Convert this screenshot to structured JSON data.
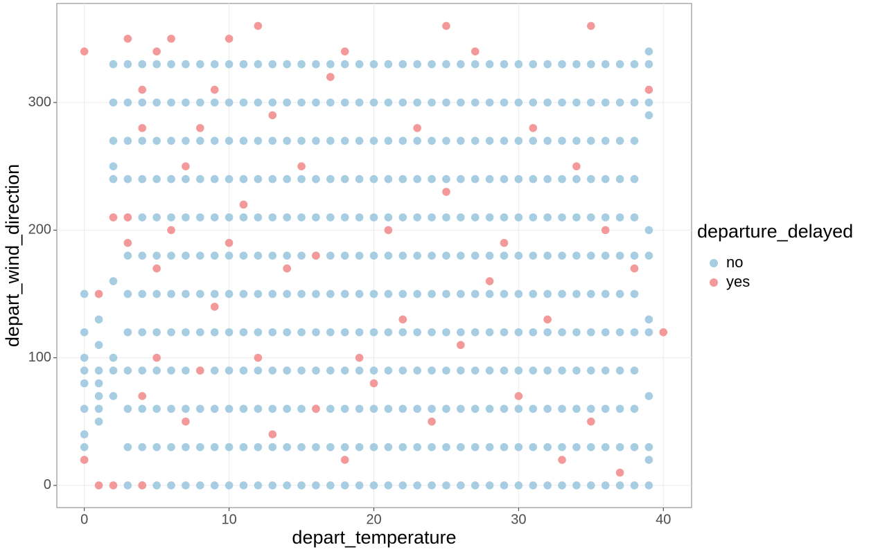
{
  "chart_data": {
    "type": "scatter",
    "x_label": "depart_temperature",
    "y_label": "depart_wind_direction",
    "legend_title": "departure_delayed",
    "xlim": [
      -1.9,
      41.95
    ],
    "ylim": [
      -17.4,
      377.6
    ],
    "xticks": [
      0,
      10,
      20,
      30,
      40
    ],
    "yticks": [
      0,
      100,
      200,
      300
    ],
    "grid": true,
    "legend": "right",
    "series": [
      {
        "name": "no",
        "color": "#a6cde1",
        "x": [
          0,
          0,
          0,
          0,
          0,
          0,
          0,
          0,
          1,
          1,
          1,
          1,
          1,
          1,
          1,
          2,
          2,
          2,
          2,
          2,
          2,
          2,
          2,
          2,
          3,
          3,
          3,
          3,
          3,
          3,
          3,
          3,
          3,
          3,
          3,
          3,
          4,
          4,
          4,
          4,
          4,
          4,
          4,
          4,
          4,
          4,
          4,
          4,
          5,
          5,
          5,
          5,
          5,
          5,
          5,
          5,
          5,
          5,
          5,
          5,
          6,
          6,
          6,
          6,
          6,
          6,
          6,
          6,
          6,
          6,
          6,
          6,
          7,
          7,
          7,
          7,
          7,
          7,
          7,
          7,
          7,
          7,
          7,
          7,
          8,
          8,
          8,
          8,
          8,
          8,
          8,
          8,
          8,
          8,
          8,
          8,
          9,
          9,
          9,
          9,
          9,
          9,
          9,
          9,
          9,
          9,
          9,
          9,
          10,
          10,
          10,
          10,
          10,
          10,
          10,
          10,
          10,
          10,
          10,
          10,
          11,
          11,
          11,
          11,
          11,
          11,
          11,
          11,
          11,
          11,
          11,
          11,
          12,
          12,
          12,
          12,
          12,
          12,
          12,
          12,
          12,
          12,
          12,
          12,
          13,
          13,
          13,
          13,
          13,
          13,
          13,
          13,
          13,
          13,
          13,
          13,
          14,
          14,
          14,
          14,
          14,
          14,
          14,
          14,
          14,
          14,
          14,
          14,
          15,
          15,
          15,
          15,
          15,
          15,
          15,
          15,
          15,
          15,
          15,
          15,
          16,
          16,
          16,
          16,
          16,
          16,
          16,
          16,
          16,
          16,
          16,
          16,
          17,
          17,
          17,
          17,
          17,
          17,
          17,
          17,
          17,
          17,
          17,
          17,
          18,
          18,
          18,
          18,
          18,
          18,
          18,
          18,
          18,
          18,
          18,
          18,
          19,
          19,
          19,
          19,
          19,
          19,
          19,
          19,
          19,
          19,
          19,
          19,
          20,
          20,
          20,
          20,
          20,
          20,
          20,
          20,
          20,
          20,
          20,
          20,
          21,
          21,
          21,
          21,
          21,
          21,
          21,
          21,
          21,
          21,
          21,
          21,
          22,
          22,
          22,
          22,
          22,
          22,
          22,
          22,
          22,
          22,
          22,
          22,
          23,
          23,
          23,
          23,
          23,
          23,
          23,
          23,
          23,
          23,
          23,
          23,
          24,
          24,
          24,
          24,
          24,
          24,
          24,
          24,
          24,
          24,
          24,
          24,
          25,
          25,
          25,
          25,
          25,
          25,
          25,
          25,
          25,
          25,
          25,
          25,
          26,
          26,
          26,
          26,
          26,
          26,
          26,
          26,
          26,
          26,
          26,
          26,
          27,
          27,
          27,
          27,
          27,
          27,
          27,
          27,
          27,
          27,
          27,
          27,
          28,
          28,
          28,
          28,
          28,
          28,
          28,
          28,
          28,
          28,
          28,
          28,
          29,
          29,
          29,
          29,
          29,
          29,
          29,
          29,
          29,
          29,
          29,
          29,
          30,
          30,
          30,
          30,
          30,
          30,
          30,
          30,
          30,
          30,
          30,
          30,
          31,
          31,
          31,
          31,
          31,
          31,
          31,
          31,
          31,
          31,
          31,
          31,
          32,
          32,
          32,
          32,
          32,
          32,
          32,
          32,
          32,
          32,
          32,
          32,
          33,
          33,
          33,
          33,
          33,
          33,
          33,
          33,
          33,
          33,
          33,
          33,
          34,
          34,
          34,
          34,
          34,
          34,
          34,
          34,
          34,
          34,
          34,
          34,
          35,
          35,
          35,
          35,
          35,
          35,
          35,
          35,
          35,
          35,
          35,
          35,
          36,
          36,
          36,
          36,
          36,
          36,
          36,
          36,
          36,
          36,
          36,
          36,
          37,
          37,
          37,
          37,
          37,
          37,
          37,
          37,
          37,
          37,
          37,
          37,
          38,
          38,
          38,
          38,
          38,
          38,
          38,
          38,
          38,
          38,
          38,
          38,
          39,
          39,
          39,
          39,
          39,
          39,
          39,
          39,
          39,
          39,
          39,
          39
        ],
        "values": [
          30,
          40,
          60,
          80,
          90,
          100,
          120,
          150,
          50,
          60,
          70,
          80,
          90,
          110,
          130,
          70,
          90,
          100,
          160,
          240,
          250,
          270,
          300,
          330,
          0,
          30,
          60,
          90,
          120,
          150,
          180,
          210,
          240,
          270,
          300,
          330,
          0,
          30,
          60,
          90,
          120,
          150,
          180,
          210,
          240,
          270,
          300,
          330,
          0,
          30,
          60,
          90,
          120,
          150,
          180,
          210,
          240,
          270,
          300,
          330,
          0,
          30,
          60,
          90,
          120,
          150,
          180,
          210,
          240,
          270,
          300,
          330,
          0,
          30,
          60,
          90,
          120,
          150,
          180,
          210,
          240,
          270,
          300,
          330,
          0,
          30,
          60,
          90,
          120,
          150,
          180,
          210,
          240,
          270,
          300,
          330,
          0,
          30,
          60,
          90,
          120,
          150,
          180,
          210,
          240,
          270,
          300,
          330,
          0,
          30,
          60,
          90,
          120,
          150,
          180,
          210,
          240,
          270,
          300,
          330,
          0,
          30,
          60,
          90,
          120,
          150,
          180,
          210,
          240,
          270,
          300,
          330,
          0,
          30,
          60,
          90,
          120,
          150,
          180,
          210,
          240,
          270,
          300,
          330,
          0,
          30,
          60,
          90,
          120,
          150,
          180,
          210,
          240,
          270,
          300,
          330,
          0,
          30,
          60,
          90,
          120,
          150,
          180,
          210,
          240,
          270,
          300,
          330,
          0,
          30,
          60,
          90,
          120,
          150,
          180,
          210,
          240,
          270,
          300,
          330,
          0,
          30,
          60,
          90,
          120,
          150,
          180,
          210,
          240,
          270,
          300,
          330,
          0,
          30,
          60,
          90,
          120,
          150,
          180,
          210,
          240,
          270,
          300,
          330,
          0,
          30,
          60,
          90,
          120,
          150,
          180,
          210,
          240,
          270,
          300,
          330,
          0,
          30,
          60,
          90,
          120,
          150,
          180,
          210,
          240,
          270,
          300,
          330,
          0,
          30,
          60,
          90,
          120,
          150,
          180,
          210,
          240,
          270,
          300,
          330,
          0,
          30,
          60,
          90,
          120,
          150,
          180,
          210,
          240,
          270,
          300,
          330,
          0,
          30,
          60,
          90,
          120,
          150,
          180,
          210,
          240,
          270,
          300,
          330,
          0,
          30,
          60,
          90,
          120,
          150,
          180,
          210,
          240,
          270,
          300,
          330,
          0,
          30,
          60,
          90,
          120,
          150,
          180,
          210,
          240,
          270,
          300,
          330,
          0,
          30,
          60,
          90,
          120,
          150,
          180,
          210,
          240,
          270,
          300,
          330,
          0,
          30,
          60,
          90,
          120,
          150,
          180,
          210,
          240,
          270,
          300,
          330,
          0,
          30,
          60,
          90,
          120,
          150,
          180,
          210,
          240,
          270,
          300,
          330,
          0,
          30,
          60,
          90,
          120,
          150,
          180,
          210,
          240,
          270,
          300,
          330,
          0,
          30,
          60,
          90,
          120,
          150,
          180,
          210,
          240,
          270,
          300,
          330,
          0,
          30,
          60,
          90,
          120,
          150,
          180,
          210,
          240,
          270,
          300,
          330,
          0,
          30,
          60,
          90,
          120,
          150,
          180,
          210,
          240,
          270,
          300,
          330,
          0,
          30,
          60,
          90,
          120,
          150,
          180,
          210,
          240,
          270,
          300,
          330,
          0,
          30,
          60,
          90,
          120,
          150,
          180,
          210,
          240,
          270,
          300,
          330,
          0,
          30,
          60,
          90,
          120,
          150,
          180,
          210,
          240,
          270,
          300,
          330,
          0,
          30,
          60,
          90,
          120,
          150,
          180,
          210,
          240,
          270,
          300,
          330,
          0,
          30,
          60,
          90,
          120,
          150,
          180,
          210,
          240,
          270,
          300,
          330,
          0,
          30,
          60,
          90,
          120,
          150,
          180,
          210,
          240,
          270,
          300,
          330,
          0,
          30,
          60,
          90,
          120,
          150,
          180,
          210,
          240,
          270,
          300,
          330,
          0,
          20,
          30,
          70,
          120,
          130,
          180,
          200,
          290,
          300,
          330,
          340
        ]
      },
      {
        "name": "yes",
        "color": "#f4999a",
        "x": [
          0,
          0,
          1,
          1,
          2,
          2,
          3,
          3,
          3,
          4,
          4,
          4,
          4,
          5,
          5,
          5,
          6,
          6,
          7,
          7,
          8,
          8,
          9,
          9,
          10,
          10,
          11,
          12,
          12,
          13,
          13,
          14,
          15,
          16,
          16,
          17,
          18,
          18,
          19,
          20,
          21,
          22,
          23,
          24,
          25,
          25,
          26,
          27,
          28,
          29,
          30,
          31,
          32,
          33,
          34,
          35,
          35,
          36,
          37,
          38,
          39,
          40
        ],
        "values": [
          20,
          340,
          0,
          150,
          0,
          210,
          210,
          350,
          190,
          280,
          310,
          70,
          0,
          340,
          170,
          100,
          350,
          200,
          50,
          250,
          280,
          90,
          310,
          140,
          350,
          190,
          220,
          360,
          100,
          290,
          40,
          170,
          250,
          180,
          60,
          320,
          340,
          20,
          100,
          80,
          200,
          130,
          280,
          50,
          360,
          230,
          110,
          340,
          160,
          190,
          70,
          280,
          130,
          20,
          250,
          360,
          50,
          200,
          10,
          170,
          310,
          120
        ]
      }
    ]
  }
}
